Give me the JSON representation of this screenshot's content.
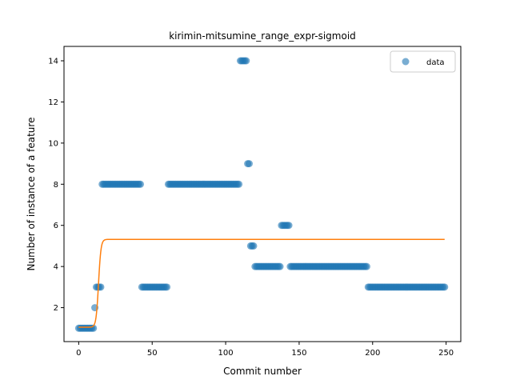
{
  "chart_data": {
    "type": "scatter",
    "title": "kirimin-mitsumine_range_expr-sigmoid",
    "xlabel": "Commit number",
    "ylabel": "Number of instance of a feature",
    "xlim": [
      -10,
      260
    ],
    "ylim": [
      0.35,
      14.7
    ],
    "xticks": [
      0,
      50,
      100,
      150,
      200,
      250
    ],
    "yticks": [
      2,
      4,
      6,
      8,
      10,
      12,
      14
    ],
    "legend": {
      "position": "top-right",
      "entries": [
        "data"
      ]
    },
    "grid": false,
    "colors": {
      "data": "#1f77b4",
      "fit": "#ff7f0e"
    },
    "series": [
      {
        "name": "data",
        "kind": "scatter",
        "segments": [
          {
            "x_start": 0,
            "x_end": 10,
            "y": 1
          },
          {
            "x_start": 11,
            "x_end": 11,
            "y": 2
          },
          {
            "x_start": 12,
            "x_end": 15,
            "y": 3
          },
          {
            "x_start": 16,
            "x_end": 42,
            "y": 8
          },
          {
            "x_start": 43,
            "x_end": 60,
            "y": 3
          },
          {
            "x_start": 61,
            "x_end": 109,
            "y": 8
          },
          {
            "x_start": 110,
            "x_end": 114,
            "y": 14
          },
          {
            "x_start": 115,
            "x_end": 116,
            "y": 9
          },
          {
            "x_start": 117,
            "x_end": 119,
            "y": 5
          },
          {
            "x_start": 120,
            "x_end": 137,
            "y": 4
          },
          {
            "x_start": 138,
            "x_end": 143,
            "y": 6
          },
          {
            "x_start": 144,
            "x_end": 196,
            "y": 4
          },
          {
            "x_start": 197,
            "x_end": 249,
            "y": 3
          }
        ]
      },
      {
        "kind": "line",
        "model": "sigmoid",
        "x_range": [
          0,
          249
        ],
        "low": 1.05,
        "high": 5.32,
        "midpoint": 13.5,
        "steepness": 1.2
      }
    ]
  }
}
